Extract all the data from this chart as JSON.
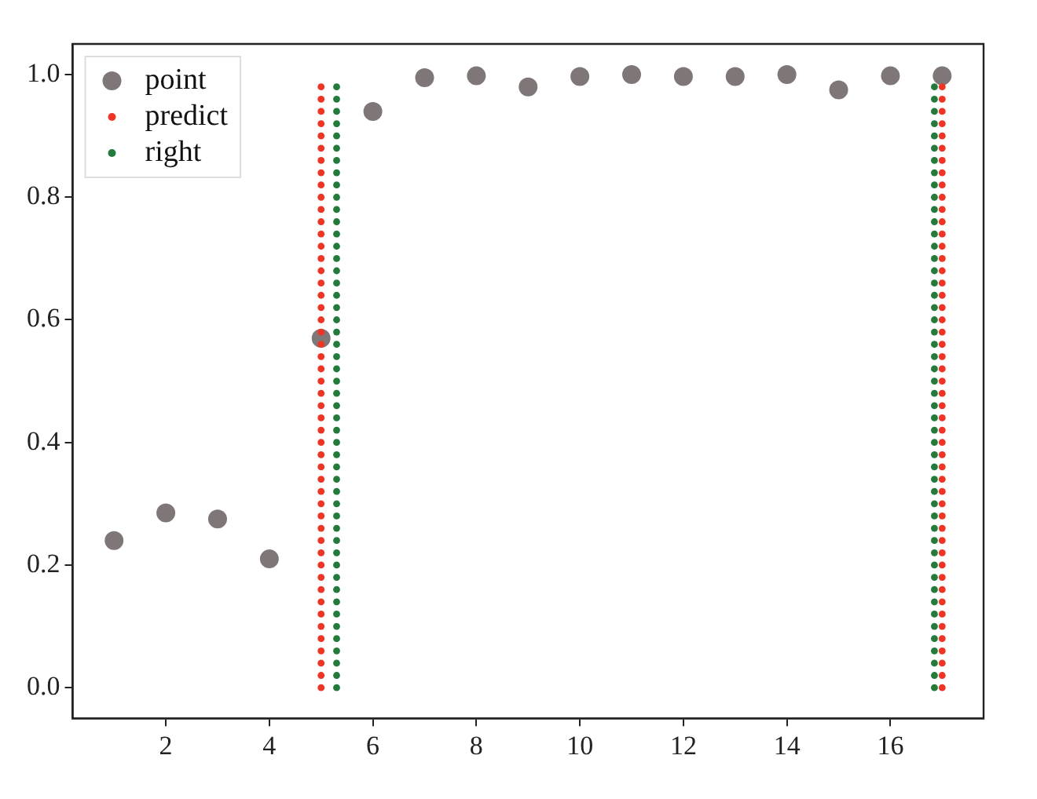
{
  "chart_data": {
    "type": "scatter",
    "xlim": [
      0.2,
      17.8
    ],
    "xticks": [
      2,
      4,
      6,
      8,
      10,
      12,
      14,
      16
    ],
    "ylim": [
      -0.05,
      1.05
    ],
    "yticks": [
      {
        "value": 0,
        "label": "0.0"
      },
      {
        "value": 0.2,
        "label": "0.2"
      },
      {
        "value": 0.4,
        "label": "0.4"
      },
      {
        "value": 0.6,
        "label": "0.6"
      },
      {
        "value": 0.8,
        "label": "0.8"
      },
      {
        "value": 1,
        "label": "1.0"
      }
    ],
    "grid": false,
    "legend": "top left",
    "marker": "circle",
    "series": [
      {
        "name": "point",
        "color": "#7f7777",
        "x": [
          1,
          2,
          3,
          4,
          5,
          6,
          7,
          8,
          9,
          10,
          11,
          12,
          13,
          14,
          15,
          16,
          17
        ],
        "values": [
          0.24,
          0.285,
          0.275,
          0.21,
          0.57,
          0.94,
          0.995,
          0.998,
          0.98,
          0.997,
          1.0,
          0.997,
          0.997,
          1.0,
          0.975,
          0.998,
          0.998
        ]
      },
      {
        "name": "predict",
        "color": "#ee3424",
        "x": [
          5,
          5,
          5,
          5,
          5,
          5,
          5,
          5,
          5,
          5,
          5,
          5,
          5,
          5,
          5,
          5,
          5,
          5,
          5,
          5,
          5,
          5,
          5,
          5,
          5,
          5,
          5,
          5,
          5,
          5,
          5,
          5,
          5,
          5,
          5,
          5,
          5,
          5,
          5,
          5,
          5,
          5,
          5,
          5,
          5,
          5,
          5,
          5,
          5,
          5,
          17,
          17,
          17,
          17,
          17,
          17,
          17,
          17,
          17,
          17,
          17,
          17,
          17,
          17,
          17,
          17,
          17,
          17,
          17,
          17,
          17,
          17,
          17,
          17,
          17,
          17,
          17,
          17,
          17,
          17,
          17,
          17,
          17,
          17,
          17,
          17,
          17,
          17,
          17,
          17,
          17,
          17,
          17,
          17,
          17,
          17,
          17,
          17,
          17,
          17
        ],
        "values": [
          0,
          0.02,
          0.04,
          0.06,
          0.08,
          0.1,
          0.12,
          0.14,
          0.16,
          0.18,
          0.2,
          0.22,
          0.24,
          0.26,
          0.28,
          0.3,
          0.32,
          0.34,
          0.36,
          0.38,
          0.4,
          0.42,
          0.44,
          0.46,
          0.48,
          0.5,
          0.52,
          0.54,
          0.56,
          0.58,
          0.6,
          0.62,
          0.64,
          0.66,
          0.68,
          0.7,
          0.72,
          0.74,
          0.76,
          0.78,
          0.8,
          0.82,
          0.84,
          0.86,
          0.88,
          0.9,
          0.92,
          0.94,
          0.96,
          0.98,
          0,
          0.02,
          0.04,
          0.06,
          0.08,
          0.1,
          0.12,
          0.14,
          0.16,
          0.18,
          0.2,
          0.22,
          0.24,
          0.26,
          0.28,
          0.3,
          0.32,
          0.34,
          0.36,
          0.38,
          0.4,
          0.42,
          0.44,
          0.46,
          0.48,
          0.5,
          0.52,
          0.54,
          0.56,
          0.58,
          0.6,
          0.62,
          0.64,
          0.66,
          0.68,
          0.7,
          0.72,
          0.74,
          0.76,
          0.78,
          0.8,
          0.82,
          0.84,
          0.86,
          0.88,
          0.9,
          0.92,
          0.94,
          0.96,
          0.98
        ]
      },
      {
        "name": "right",
        "color": "#237a3a",
        "x": [
          5.3,
          5.3,
          5.3,
          5.3,
          5.3,
          5.3,
          5.3,
          5.3,
          5.3,
          5.3,
          5.3,
          5.3,
          5.3,
          5.3,
          5.3,
          5.3,
          5.3,
          5.3,
          5.3,
          5.3,
          5.3,
          5.3,
          5.3,
          5.3,
          5.3,
          5.3,
          5.3,
          5.3,
          5.3,
          5.3,
          5.3,
          5.3,
          5.3,
          5.3,
          5.3,
          5.3,
          5.3,
          5.3,
          5.3,
          5.3,
          5.3,
          5.3,
          5.3,
          5.3,
          5.3,
          5.3,
          5.3,
          5.3,
          5.3,
          5.3,
          16.85,
          16.85,
          16.85,
          16.85,
          16.85,
          16.85,
          16.85,
          16.85,
          16.85,
          16.85,
          16.85,
          16.85,
          16.85,
          16.85,
          16.85,
          16.85,
          16.85,
          16.85,
          16.85,
          16.85,
          16.85,
          16.85,
          16.85,
          16.85,
          16.85,
          16.85,
          16.85,
          16.85,
          16.85,
          16.85,
          16.85,
          16.85,
          16.85,
          16.85,
          16.85,
          16.85,
          16.85,
          16.85,
          16.85,
          16.85,
          16.85,
          16.85,
          16.85,
          16.85,
          16.85,
          16.85,
          16.85,
          16.85,
          16.85,
          16.85
        ],
        "values": [
          0,
          0.02,
          0.04,
          0.06,
          0.08,
          0.1,
          0.12,
          0.14,
          0.16,
          0.18,
          0.2,
          0.22,
          0.24,
          0.26,
          0.28,
          0.3,
          0.32,
          0.34,
          0.36,
          0.38,
          0.4,
          0.42,
          0.44,
          0.46,
          0.48,
          0.5,
          0.52,
          0.54,
          0.56,
          0.58,
          0.6,
          0.62,
          0.64,
          0.66,
          0.68,
          0.7,
          0.72,
          0.74,
          0.76,
          0.78,
          0.8,
          0.82,
          0.84,
          0.86,
          0.88,
          0.9,
          0.92,
          0.94,
          0.96,
          0.98,
          0,
          0.02,
          0.04,
          0.06,
          0.08,
          0.1,
          0.12,
          0.14,
          0.16,
          0.18,
          0.2,
          0.22,
          0.24,
          0.26,
          0.28,
          0.3,
          0.32,
          0.34,
          0.36,
          0.38,
          0.4,
          0.42,
          0.44,
          0.46,
          0.48,
          0.5,
          0.52,
          0.54,
          0.56,
          0.58,
          0.6,
          0.62,
          0.64,
          0.66,
          0.68,
          0.7,
          0.72,
          0.74,
          0.76,
          0.78,
          0.8,
          0.82,
          0.84,
          0.86,
          0.88,
          0.9,
          0.92,
          0.94,
          0.96,
          0.98
        ]
      }
    ]
  }
}
